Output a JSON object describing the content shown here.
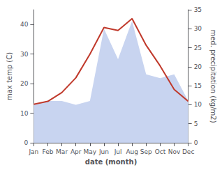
{
  "chart_data": {
    "type": "line",
    "xlabel": "date (month)",
    "ylabel": "max temp (C)",
    "y2label": "med. precipitation (kg/m2)",
    "categories": [
      "Jan",
      "Feb",
      "Mar",
      "Apr",
      "May",
      "Jun",
      "Jul",
      "Aug",
      "Sep",
      "Oct",
      "Nov",
      "Dec"
    ],
    "series": [
      {
        "type": "area",
        "axis": "y2",
        "color": "#c8d4f0",
        "values": [
          10,
          11,
          11,
          10,
          11,
          30,
          22,
          32,
          18,
          17,
          18,
          11
        ]
      },
      {
        "type": "line",
        "axis": "y",
        "color": "#c0392b",
        "values": [
          13,
          14,
          17,
          22,
          30,
          39,
          38,
          42,
          33,
          26,
          18,
          14
        ]
      }
    ],
    "ylim": [
      0,
      45
    ],
    "yticks": [
      0,
      10,
      20,
      30,
      40
    ],
    "y2lim": [
      0,
      35
    ],
    "y2ticks": [
      0,
      5,
      10,
      15,
      20,
      25,
      30,
      35
    ],
    "grid": false
  }
}
